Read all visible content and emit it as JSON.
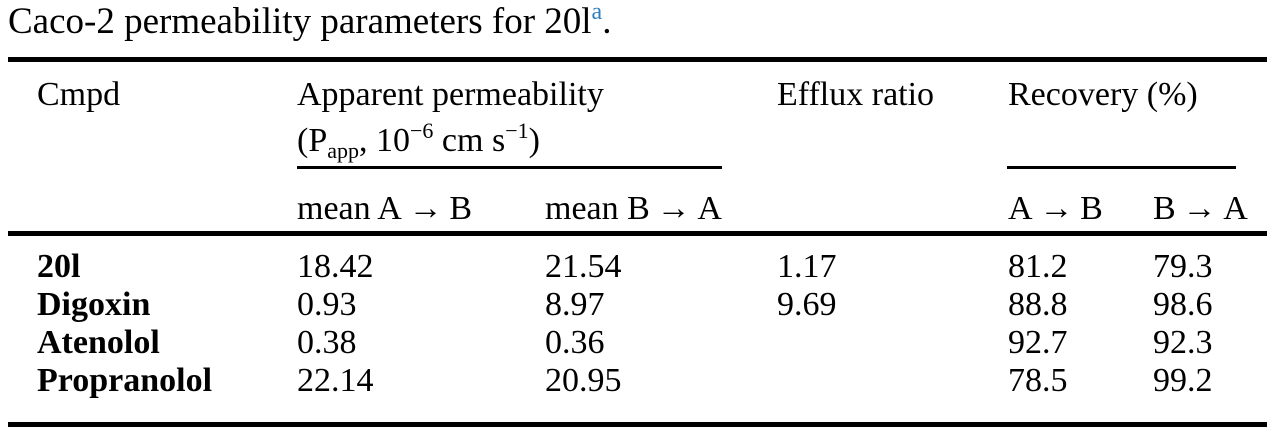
{
  "title": {
    "text": "Caco-2 permeability parameters for 20l",
    "footnote_marker": "a",
    "suffix": "."
  },
  "colors": {
    "footnote_blue": "#2e7fbe",
    "text": "#000000",
    "background": "#ffffff"
  },
  "table": {
    "header": {
      "cmpd": "Cmpd",
      "apparent_permeability_line1": "Apparent permeability",
      "papp_parts": {
        "open": "(P",
        "sub": "app",
        "mid1": ", 10",
        "sup1": "−6",
        "mid2": " cm s",
        "sup2": "−1",
        "close": ")"
      },
      "efflux_ratio": "Efflux ratio",
      "recovery": "Recovery (%)"
    },
    "subheader": {
      "mean_ab": "mean A → B",
      "mean_ba": "mean B → A",
      "rec_ab": "A → B",
      "rec_ba": "B → A"
    },
    "rows": [
      {
        "cmpd": "20l",
        "mean_ab": "18.42",
        "mean_ba": "21.54",
        "efflux": "1.17",
        "rec_ab": "81.2",
        "rec_ba": "79.3"
      },
      {
        "cmpd": "Digoxin",
        "mean_ab": "0.93",
        "mean_ba": "8.97",
        "efflux": "9.69",
        "rec_ab": "88.8",
        "rec_ba": "98.6"
      },
      {
        "cmpd": "Atenolol",
        "mean_ab": "0.38",
        "mean_ba": "0.36",
        "efflux": "",
        "rec_ab": "92.7",
        "rec_ba": "92.3"
      },
      {
        "cmpd": "Propranolol",
        "mean_ab": "22.14",
        "mean_ba": "20.95",
        "efflux": "",
        "rec_ab": "78.5",
        "rec_ba": "99.2"
      }
    ]
  }
}
